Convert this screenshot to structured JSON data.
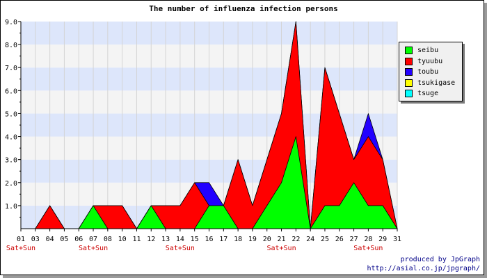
{
  "chart_data": {
    "type": "area",
    "stacked": true,
    "title": "The number of influenza infection persons",
    "x": [
      "01",
      "03",
      "04",
      "05",
      "06",
      "07",
      "08",
      "10",
      "11",
      "12",
      "13",
      "14",
      "15",
      "16",
      "17",
      "18",
      "19",
      "20",
      "21",
      "22",
      "24",
      "25",
      "26",
      "27",
      "28",
      "29",
      "31"
    ],
    "x_tick_labels": [
      "01",
      "03",
      "04",
      "05",
      "06",
      "07",
      "08",
      "10",
      "11",
      "12",
      "13",
      "14",
      "15",
      "16",
      "17",
      "18",
      "19",
      "20",
      "21",
      "22",
      "24",
      "25",
      "26",
      "27",
      "28",
      "29",
      "31"
    ],
    "weekend_marker": "Sat+Sun",
    "weekend_ticks": [
      "01",
      "07",
      "14",
      "21",
      "28"
    ],
    "ylim": [
      0,
      9
    ],
    "y_ticks": [
      "1.0",
      "2.0",
      "3.0",
      "4.0",
      "5.0",
      "6.0",
      "7.0",
      "8.0",
      "9.0"
    ],
    "legend_position": "right",
    "series": [
      {
        "name": "seibu",
        "color": "#00ff00",
        "values": [
          0,
          0,
          0,
          0,
          0,
          1,
          0,
          0,
          0,
          1,
          0,
          0,
          0,
          1,
          1,
          0,
          0,
          1,
          2,
          4,
          0,
          1,
          1,
          2,
          1,
          1,
          0
        ]
      },
      {
        "name": "tyuubu",
        "color": "#ff0000",
        "values": [
          0,
          0,
          1,
          0,
          0,
          0,
          1,
          1,
          0,
          0,
          1,
          1,
          2,
          0,
          0,
          3,
          1,
          2,
          3,
          5,
          0,
          6,
          4,
          1,
          3,
          2,
          0
        ]
      },
      {
        "name": "toubu",
        "color": "#2200ff",
        "values": [
          0,
          0,
          0,
          0,
          0,
          0,
          0,
          0,
          0,
          0,
          0,
          0,
          0,
          1,
          0,
          0,
          0,
          0,
          0,
          0,
          0,
          0,
          0,
          0,
          1,
          0,
          0
        ]
      },
      {
        "name": "tsukigase",
        "color": "#ffff00",
        "values": [
          0,
          0,
          0,
          0,
          0,
          0,
          0,
          0,
          0,
          0,
          0,
          0,
          0,
          0,
          0,
          0,
          0,
          0,
          0,
          0,
          0,
          0,
          0,
          0,
          0,
          0,
          0
        ]
      },
      {
        "name": "tsuge",
        "color": "#00ffff",
        "values": [
          0,
          0,
          0,
          0,
          0,
          0,
          0,
          0,
          0,
          0,
          0,
          0,
          0,
          0,
          0,
          0,
          0,
          0,
          0,
          0,
          0,
          0,
          0,
          0,
          0,
          0,
          0
        ]
      }
    ],
    "credit": [
      "produced by JpGraph",
      "http://asial.co.jp/jpgraph/"
    ]
  }
}
